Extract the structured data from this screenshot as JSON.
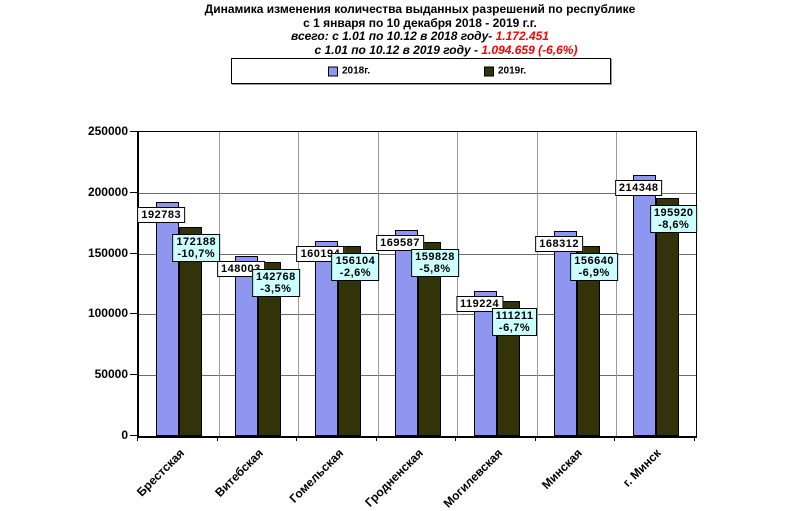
{
  "header": {
    "title_line1": "Динамика изменения количества выданных разрешений  по республике",
    "title_line2": "с 1 января по 10 декабря 2018 - 2019 г.г.",
    "total_2018_prefix": "всего:  с 1.01 по 10.12 в 2018 году- ",
    "total_2018_value": "1.172.451",
    "total_2019_prefix": "с 1.01 по 10.12 в 2019 году - ",
    "total_2019_value": "1.094.659 (-6,6%)",
    "accent_color": "#FF0000"
  },
  "chart_data": {
    "type": "bar",
    "categories": [
      "Брестская",
      "Витебская",
      "Гомельская",
      "Гродненская",
      "Могилевская",
      "Минская",
      "г. Минск"
    ],
    "series": [
      {
        "name": "2018г.",
        "color": "#8F96EF",
        "label_bg": "#FFFFFF",
        "values": [
          192783,
          148003,
          160194,
          169587,
          119224,
          168312,
          214348
        ]
      },
      {
        "name": "2019г.",
        "color": "#333309",
        "label_bg": "#CCFFFF",
        "values": [
          172188,
          142768,
          156104,
          159828,
          111211,
          156640,
          195920
        ],
        "delta_labels": [
          "-10,7%",
          "-3,5%",
          "-2,6%",
          "-5,8%",
          "-6,7%",
          "-6,9%",
          "-8,6%"
        ]
      }
    ],
    "ylim": [
      0,
      250000
    ],
    "ytick_step": 50000,
    "ytick_labels": [
      "0",
      "50000",
      "100000",
      "150000",
      "200000",
      "250000"
    ],
    "grid": "horizontal and vertical category gridlines",
    "legend_position": "top",
    "xlabel": "",
    "ylabel": ""
  }
}
